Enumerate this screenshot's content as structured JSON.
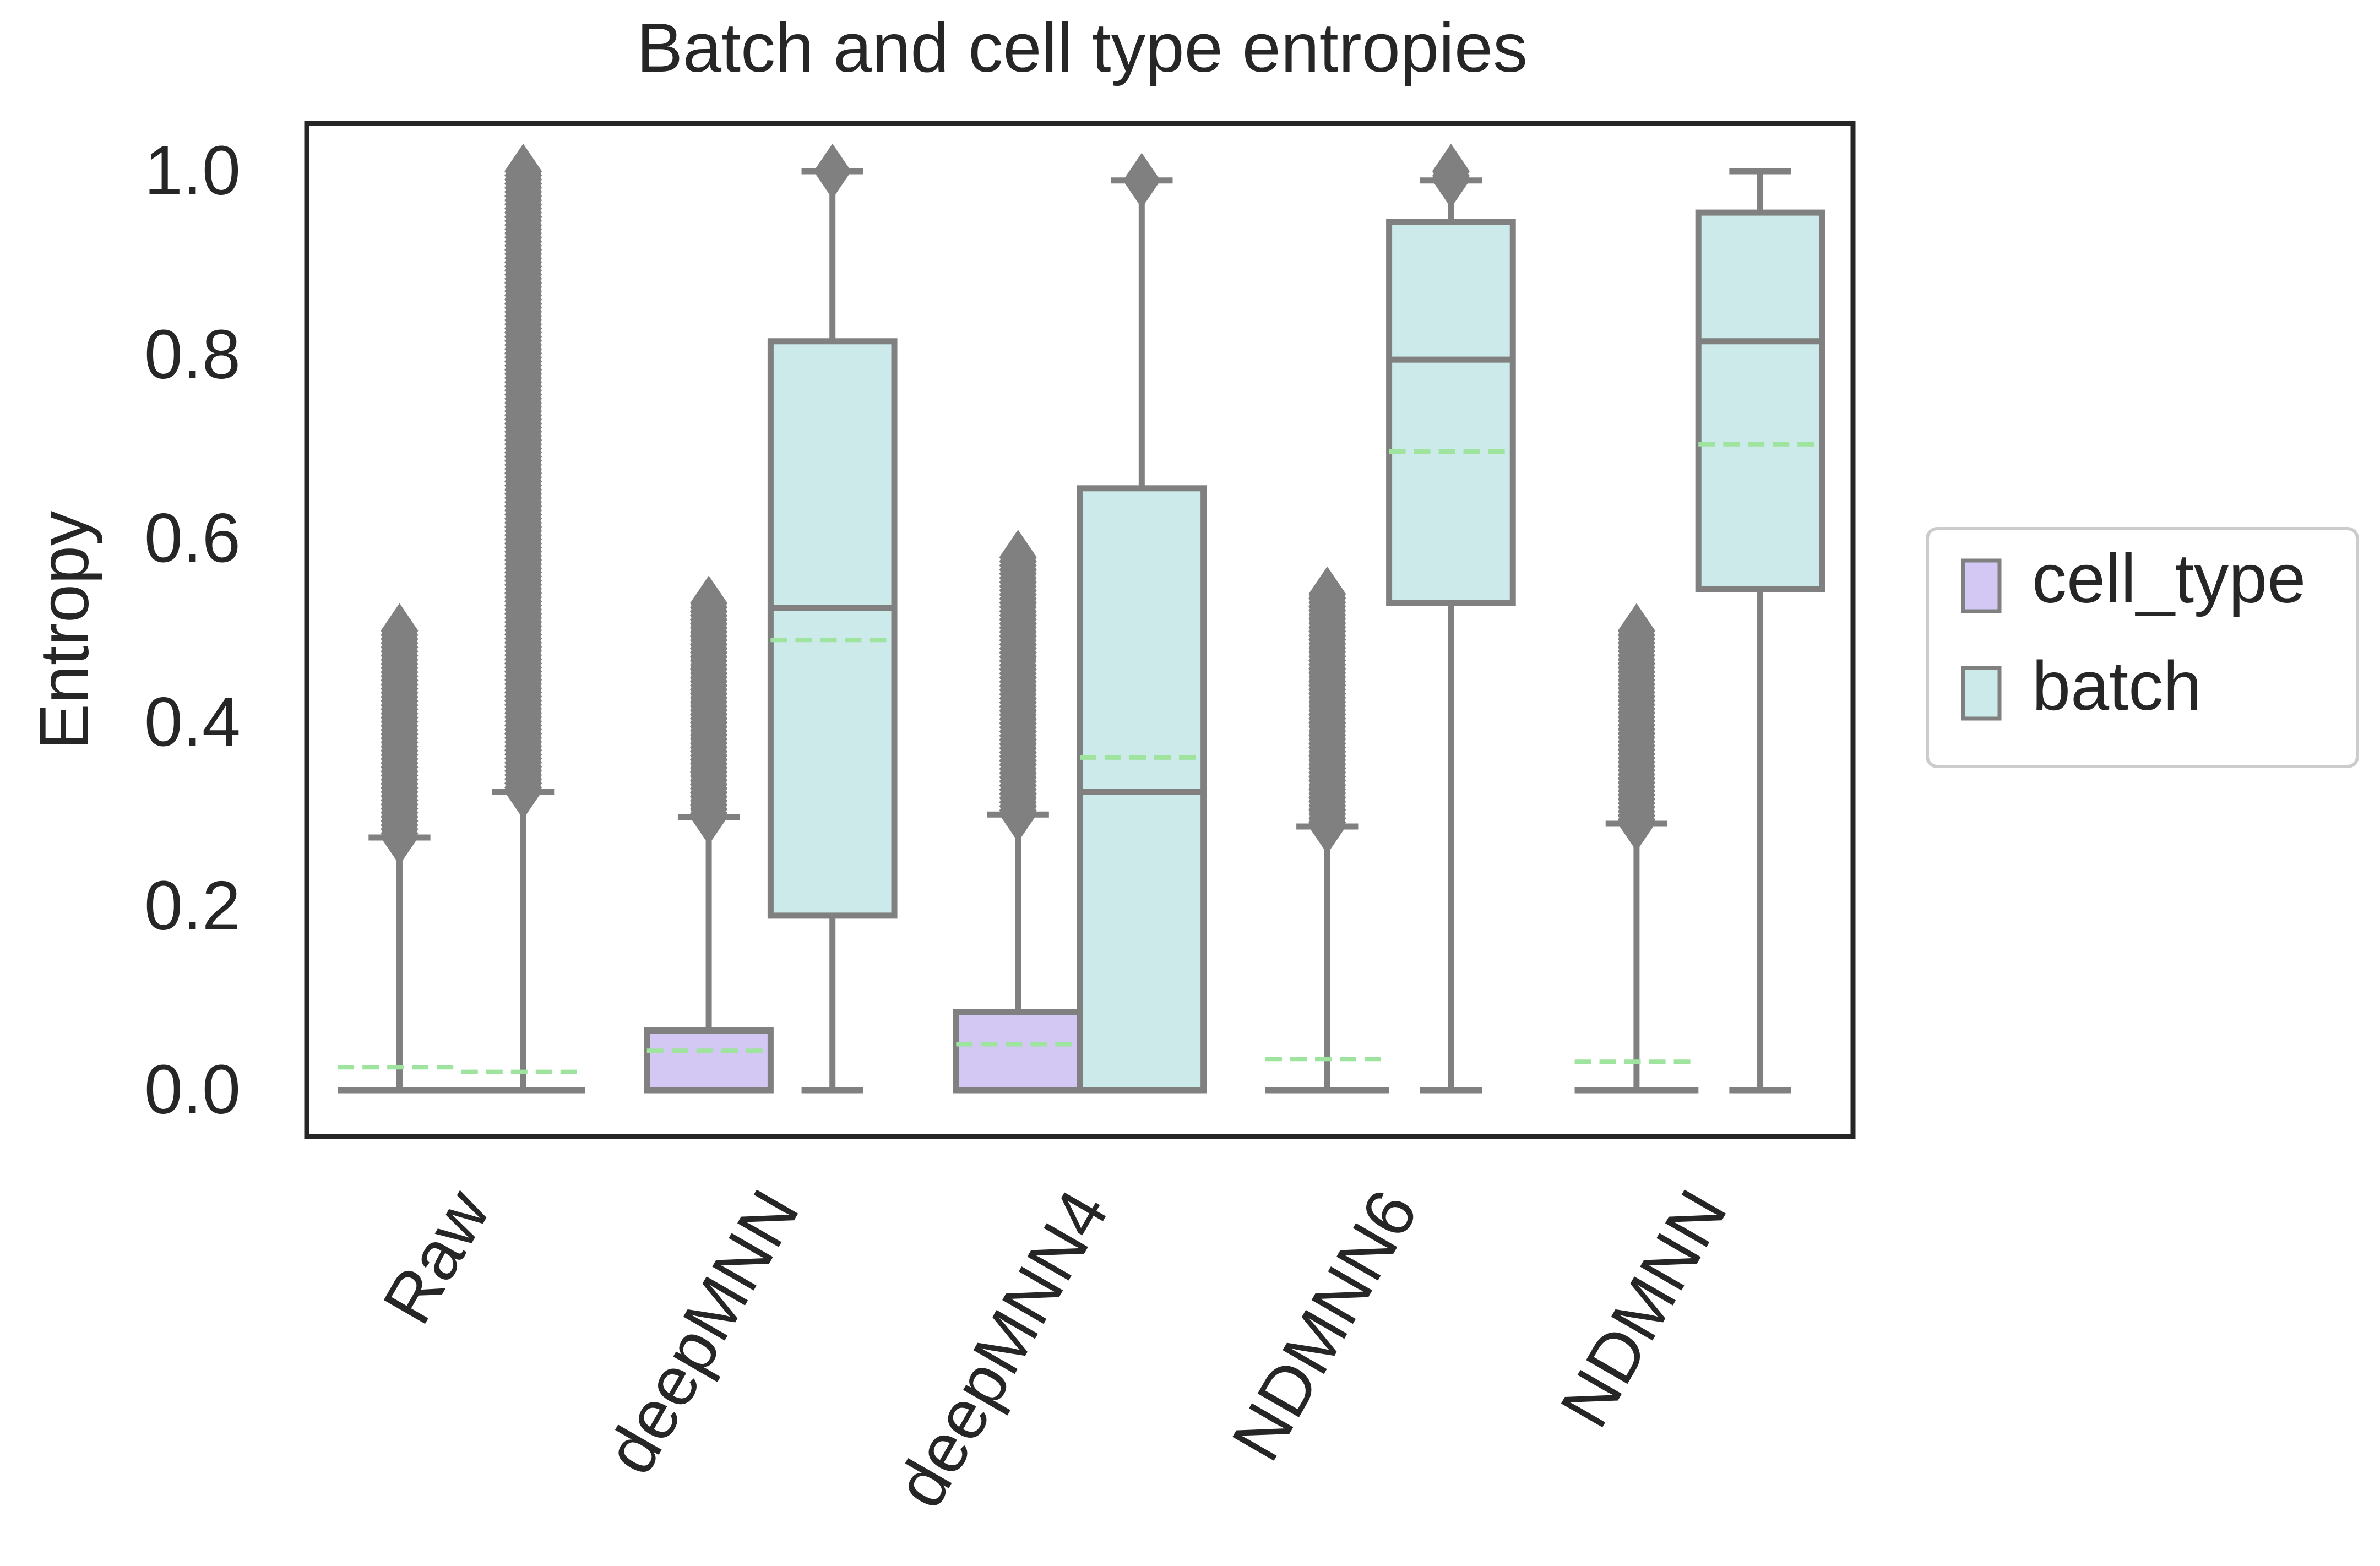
{
  "chart_data": {
    "type": "box",
    "title": "Batch and cell type entropies",
    "xlabel": "",
    "ylabel": "Entropy",
    "ylim": [
      -0.05,
      1.055
    ],
    "yticks": [
      "0.0",
      "0.2",
      "0.4",
      "0.6",
      "0.8",
      "1.0"
    ],
    "categories": [
      "Raw",
      "deepMNN",
      "deepMNN4",
      "NDMNN6",
      "NDMNN"
    ],
    "grid": false,
    "legend": {
      "placement": "right",
      "entries": [
        "cell_type",
        "batch"
      ]
    },
    "colors": {
      "cell_type": "#d3c8f3",
      "batch": "#cdeaea",
      "box_edge": "#808080",
      "mean_line": "#9ee39e",
      "frame": "#262626"
    },
    "series": [
      {
        "name": "cell_type",
        "boxes": [
          {
            "q1": 0.0,
            "median": 0.0,
            "q3": 0.0,
            "whisker_low": 0.0,
            "whisker_high": 0.275,
            "mean": 0.025,
            "outliers_from": 0.275,
            "outliers_to": 0.5
          },
          {
            "q1": 0.0,
            "median": 0.0,
            "q3": 0.065,
            "whisker_low": 0.0,
            "whisker_high": 0.297,
            "mean": 0.043,
            "outliers_from": 0.297,
            "outliers_to": 0.53
          },
          {
            "q1": 0.0,
            "median": 0.0,
            "q3": 0.085,
            "whisker_low": 0.0,
            "whisker_high": 0.3,
            "mean": 0.05,
            "outliers_from": 0.3,
            "outliers_to": 0.58
          },
          {
            "q1": 0.0,
            "median": 0.0,
            "q3": 0.0,
            "whisker_low": 0.0,
            "whisker_high": 0.287,
            "mean": 0.034,
            "outliers_from": 0.287,
            "outliers_to": 0.54
          },
          {
            "q1": 0.0,
            "median": 0.0,
            "q3": 0.0,
            "whisker_low": 0.0,
            "whisker_high": 0.29,
            "mean": 0.031,
            "outliers_from": 0.29,
            "outliers_to": 0.5
          }
        ]
      },
      {
        "name": "batch",
        "boxes": [
          {
            "q1": 0.0,
            "median": 0.0,
            "q3": 0.0,
            "whisker_low": 0.0,
            "whisker_high": 0.325,
            "mean": 0.02,
            "outliers_from": 0.325,
            "outliers_to": 1.0
          },
          {
            "q1": 0.19,
            "median": 0.525,
            "q3": 0.815,
            "whisker_low": 0.0,
            "whisker_high": 1.0,
            "mean": 0.49,
            "outliers_from": 1.0,
            "outliers_to": 1.0
          },
          {
            "q1": 0.0,
            "median": 0.325,
            "q3": 0.655,
            "whisker_low": 0.0,
            "whisker_high": 0.99,
            "mean": 0.362,
            "outliers_from": 0.99,
            "outliers_to": 0.99
          },
          {
            "q1": 0.53,
            "median": 0.795,
            "q3": 0.945,
            "whisker_low": 0.0,
            "whisker_high": 0.99,
            "mean": 0.695,
            "outliers_from": 0.99,
            "outliers_to": 1.0
          },
          {
            "q1": 0.545,
            "median": 0.815,
            "q3": 0.955,
            "whisker_low": 0.0,
            "whisker_high": 1.0,
            "mean": 0.703,
            "outliers_from": null,
            "outliers_to": null
          }
        ]
      }
    ]
  }
}
